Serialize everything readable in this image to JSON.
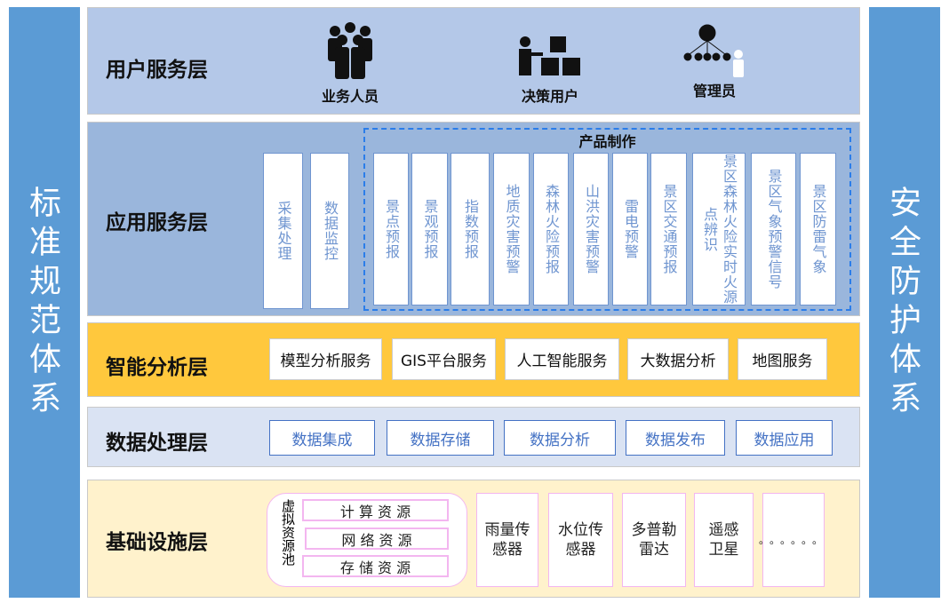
{
  "left_pillar": "标准规范体系",
  "right_pillar": "安全防护体系",
  "user_layer": {
    "title": "用户服务层",
    "users": [
      {
        "label": "业务人员",
        "icon": "people-group-icon"
      },
      {
        "label": "决策用户",
        "icon": "presenter-boxes-icon"
      },
      {
        "label": "管理员",
        "icon": "org-hierarchy-icon"
      }
    ]
  },
  "app_layer": {
    "title": "应用服务层",
    "services": [
      "采集处理",
      "数据监控"
    ],
    "product_group": "产品制作",
    "products": [
      "景点预报",
      "景观预报",
      "指数预报",
      "地质灾害预警",
      "森林火险预报",
      "山洪灾害预警",
      "雷电预警",
      "景区交通预报",
      "景区森林火险实时火源点辨识",
      "景区气象预警信号",
      "景区防雷气象"
    ]
  },
  "analysis_layer": {
    "title": "智能分析层",
    "items": [
      "模型分析服务",
      "GIS平台服务",
      "人工智能服务",
      "大数据分析",
      "地图服务"
    ]
  },
  "data_layer": {
    "title": "数据处理层",
    "items": [
      "数据集成",
      "数据存储",
      "数据分析",
      "数据发布",
      "数据应用"
    ]
  },
  "infra_layer": {
    "title": "基础设施层",
    "pool_label": "虚拟资源池",
    "pool_items": [
      "计 算 资 源",
      "网 络 资 源",
      "存 储 资 源"
    ],
    "devices": [
      "雨量传感器",
      "水位传感器",
      "多普勒雷达",
      "遥感卫星",
      "。。。。。。"
    ]
  },
  "colors": {
    "pillar": "#5b9bd5",
    "user_bg": "#b4c8e8",
    "app_bg": "#9ab6dc",
    "analysis_bg": "#ffc83d",
    "data_bg": "#dae3f3",
    "infra_bg": "#fff2cc"
  }
}
